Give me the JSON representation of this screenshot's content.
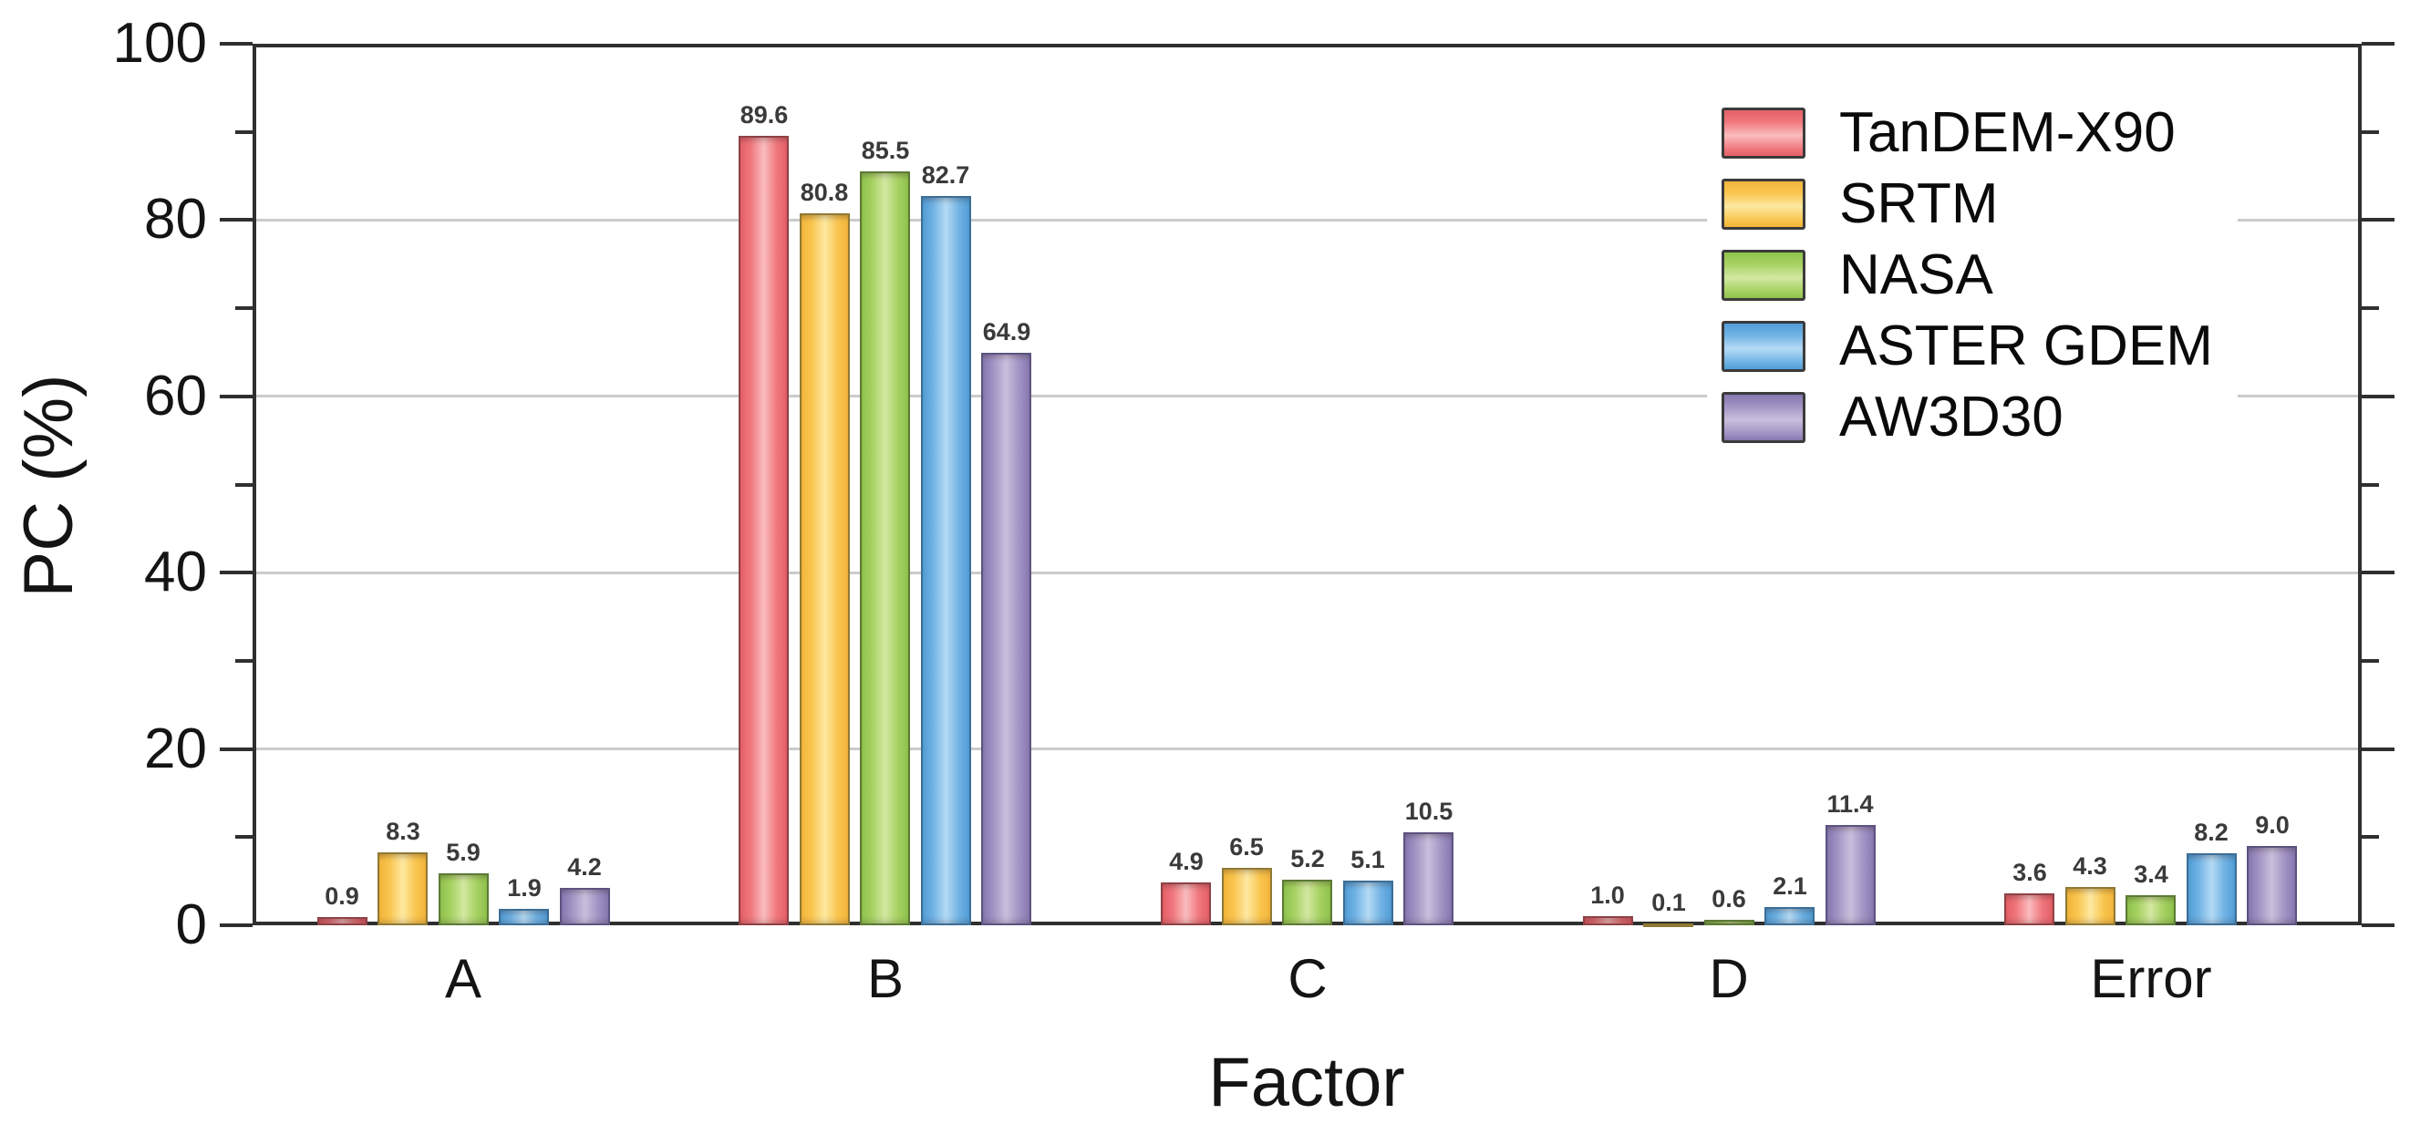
{
  "chart_data": {
    "type": "bar",
    "title": "",
    "xlabel": "Factor",
    "ylabel": "PC (%)",
    "ylim": [
      0,
      100
    ],
    "y_major_ticks": [
      0,
      20,
      40,
      60,
      80,
      100
    ],
    "y_minor_ticks": [
      10,
      30,
      50,
      70,
      90
    ],
    "gridlines": [
      20,
      40,
      60,
      80
    ],
    "grid": "horizontal-major-only",
    "legend_position": "upper-right-inside",
    "categories": [
      "A",
      "B",
      "C",
      "D",
      "Error"
    ],
    "series": [
      {
        "name": "TanDEM-X90",
        "values": [
          0.9,
          89.6,
          4.9,
          1.0,
          3.6
        ],
        "color": "#F0777D",
        "color_light": "#FABCBE",
        "color_dark": "#E55F67",
        "border_color": "#8E4145"
      },
      {
        "name": "SRTM",
        "values": [
          8.3,
          80.8,
          6.5,
          0.1,
          4.3
        ],
        "color": "#FAC54E",
        "color_light": "#FDE9A2",
        "color_dark": "#F2B53B",
        "border_color": "#8F7A35"
      },
      {
        "name": "NASA",
        "values": [
          5.9,
          85.5,
          5.2,
          0.6,
          3.4
        ],
        "color": "#A6D162",
        "color_light": "#D2E8A0",
        "color_dark": "#8FC24C",
        "border_color": "#5C7A36"
      },
      {
        "name": "ASTER GDEM",
        "values": [
          1.9,
          82.7,
          5.1,
          2.1,
          8.2
        ],
        "color": "#70B2E4",
        "color_light": "#B4DBF5",
        "color_dark": "#519DD6",
        "border_color": "#3C6E96"
      },
      {
        "name": "AW3D30",
        "values": [
          4.2,
          64.9,
          10.5,
          11.4,
          9.0
        ],
        "color": "#A193C4",
        "color_light": "#C9BFDC",
        "color_dark": "#8678AF",
        "border_color": "#5D5380"
      }
    ],
    "bar_value_labels": true,
    "value_label_decimals": 1
  },
  "legend": {
    "items": [
      "TanDEM-X90",
      "SRTM",
      "NASA",
      "ASTER GDEM",
      "AW3D30"
    ]
  },
  "colors": {
    "axis": "#2f2f2f",
    "grid": "#cbcbcb",
    "text": "#141414",
    "value_label": "#3a3a3a",
    "background": "#ffffff"
  }
}
